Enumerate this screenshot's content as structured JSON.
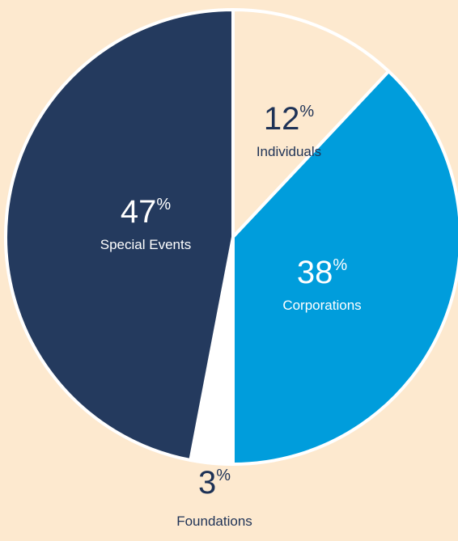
{
  "chart_data": {
    "type": "pie",
    "categories": [
      "Individuals",
      "Corporations",
      "Foundations",
      "Special Events"
    ],
    "values": [
      12,
      38,
      3,
      47
    ],
    "unit": "%",
    "colors": [
      "#fde9cf",
      "#009ddc",
      "#ffffff",
      "#243a5e"
    ],
    "label_colors": [
      "#1e3256",
      "#ffffff",
      "#1e3256",
      "#ffffff"
    ]
  }
}
